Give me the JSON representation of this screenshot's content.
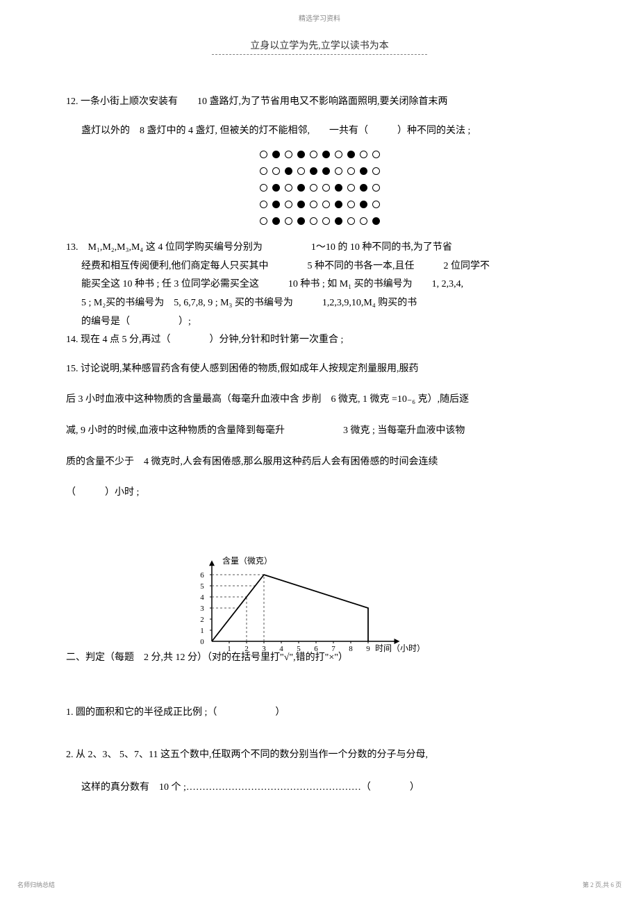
{
  "header": {
    "small": "精选学习资料",
    "main": "立身以立学为先,立学以读书为本"
  },
  "q12": {
    "line1": "12. 一条小街上顺次安装有　　10 盏路灯,为了节省用电又不影响路面照明,要关闭除首末两",
    "line2": "盏灯以外的　8 盏灯中的 4 盏灯, 但被关的灯不能相邻,　　一共有（　　　）种不同的关法 ;"
  },
  "lights": {
    "rows": [
      [
        0,
        1,
        0,
        1,
        0,
        1,
        0,
        1,
        0,
        0
      ],
      [
        0,
        0,
        1,
        0,
        1,
        1,
        0,
        0,
        1,
        0
      ],
      [
        0,
        1,
        0,
        1,
        0,
        0,
        1,
        0,
        1,
        0
      ],
      [
        0,
        1,
        0,
        1,
        0,
        0,
        1,
        0,
        1,
        0
      ],
      [
        0,
        1,
        0,
        1,
        0,
        0,
        1,
        0,
        0,
        1
      ]
    ],
    "off_color": "#ffffff",
    "on_color": "#000000",
    "border_color": "#000000"
  },
  "q13": {
    "l1": "13.　M₁,M₂,M₃,M₄ 这 4 位同学购买编号分别为　　　　　1～10 的 10 种不同的书,为了节省",
    "l2": "经费和相互传阅便利,他们商定每人只买其中　　　　5 种不同的书各一本,且任　　　2 位同学不",
    "l3": "能买全这 10 种书 ; 任 3 位同学必需买全这　　　10 种书 ; 如 M₁ 买的书编号为　　1, 2,3,4,",
    "l4": "5 ; M₂买的书编号为　5, 6,7,8, 9 ; M₃ 买的书编号为　　　1,2,3,9,10,M₄ 购买的书",
    "l5": "的编号是（　　　　　）;"
  },
  "q14": "14. 现在 4 点 5 分,再过（　　　　）分钟,分针和时针第一次重合 ;",
  "q15": {
    "l1": "15. 讨论说明,某种感冒药含有使人感到困倦的物质,假如成年人按规定剂量服用,服药",
    "l2": "后 3 小时血液中这种物质的含量最高（每毫升血液中含 步削　6 微克, 1 微克 =10₋₆ 克）,随后逐",
    "l3": "减, 9 小时的时候,血液中这种物质的含量降到每毫升　　　　　　3 微克 ; 当每毫升血液中该物",
    "l4": "质的含量不少于　4 微克时,人会有困倦感,那么服用这种药后人会有困倦感的时间会连续",
    "l5": "（　　　）小时 ;"
  },
  "chart": {
    "ylabel": "含量（微克）",
    "xlabel": "时间（小时）",
    "y_ticks": [
      0,
      1,
      2,
      3,
      4,
      5,
      6
    ],
    "x_ticks": [
      0,
      1,
      2,
      3,
      4,
      5,
      6,
      7,
      8,
      9
    ],
    "x_origin": 40,
    "y_origin": 175,
    "x_scale": 25,
    "y_scale": 16,
    "axis_color": "#000000",
    "dash_color": "#555555",
    "line_pts": [
      [
        0,
        0
      ],
      [
        3,
        6
      ],
      [
        9,
        3
      ],
      [
        9,
        0
      ]
    ],
    "dash_lines": [
      [
        [
          0,
          6
        ],
        [
          3,
          6
        ]
      ],
      [
        [
          0,
          5
        ],
        [
          2.5,
          5
        ]
      ],
      [
        [
          0,
          4
        ],
        [
          2,
          4
        ]
      ],
      [
        [
          0,
          3
        ],
        [
          1.5,
          3
        ]
      ],
      [
        [
          2,
          0
        ],
        [
          2,
          4
        ]
      ],
      [
        [
          3,
          0
        ],
        [
          3,
          6
        ]
      ],
      [
        [
          9,
          0
        ],
        [
          9,
          3
        ]
      ]
    ]
  },
  "judge": {
    "header": "二、判定（每题　2 分,共 12 分）（对的在括号里打\"√\",错的打\"×\"）",
    "q1": "1. 圆的面积和它的半径成正比例 ;（　　　　　　）",
    "q2l1": "2. 从 2、3、 5、7、11 这五个数中,任取两个不同的数分别当作一个分数的分子与分母,",
    "q2l2": "这样的真分数有　10 个 ;………………………………………………（　　　　）"
  },
  "footer": {
    "left": "名师归纳总结",
    "right": "第 2 页,共 6 页"
  }
}
